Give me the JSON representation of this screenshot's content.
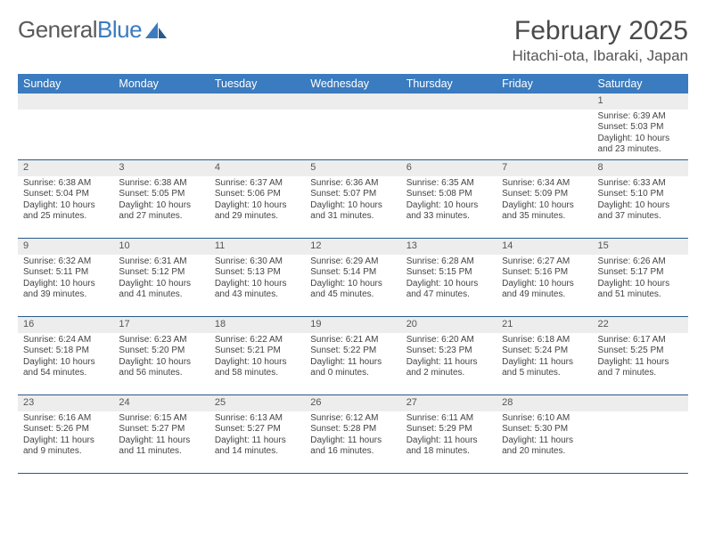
{
  "logo": {
    "text1": "General",
    "text2": "Blue"
  },
  "title": "February 2025",
  "location": "Hitachi-ota, Ibaraki, Japan",
  "colors": {
    "header_bg": "#3b7bbf",
    "header_fg": "#ffffff",
    "daynum_bg": "#ededed",
    "border": "#2a5a8a",
    "text": "#444444"
  },
  "weekdays": [
    "Sunday",
    "Monday",
    "Tuesday",
    "Wednesday",
    "Thursday",
    "Friday",
    "Saturday"
  ],
  "weeks": [
    [
      {
        "n": "",
        "empty": true
      },
      {
        "n": "",
        "empty": true
      },
      {
        "n": "",
        "empty": true
      },
      {
        "n": "",
        "empty": true
      },
      {
        "n": "",
        "empty": true
      },
      {
        "n": "",
        "empty": true
      },
      {
        "n": "1",
        "sr": "Sunrise: 6:39 AM",
        "ss": "Sunset: 5:03 PM",
        "dl1": "Daylight: 10 hours",
        "dl2": "and 23 minutes."
      }
    ],
    [
      {
        "n": "2",
        "sr": "Sunrise: 6:38 AM",
        "ss": "Sunset: 5:04 PM",
        "dl1": "Daylight: 10 hours",
        "dl2": "and 25 minutes."
      },
      {
        "n": "3",
        "sr": "Sunrise: 6:38 AM",
        "ss": "Sunset: 5:05 PM",
        "dl1": "Daylight: 10 hours",
        "dl2": "and 27 minutes."
      },
      {
        "n": "4",
        "sr": "Sunrise: 6:37 AM",
        "ss": "Sunset: 5:06 PM",
        "dl1": "Daylight: 10 hours",
        "dl2": "and 29 minutes."
      },
      {
        "n": "5",
        "sr": "Sunrise: 6:36 AM",
        "ss": "Sunset: 5:07 PM",
        "dl1": "Daylight: 10 hours",
        "dl2": "and 31 minutes."
      },
      {
        "n": "6",
        "sr": "Sunrise: 6:35 AM",
        "ss": "Sunset: 5:08 PM",
        "dl1": "Daylight: 10 hours",
        "dl2": "and 33 minutes."
      },
      {
        "n": "7",
        "sr": "Sunrise: 6:34 AM",
        "ss": "Sunset: 5:09 PM",
        "dl1": "Daylight: 10 hours",
        "dl2": "and 35 minutes."
      },
      {
        "n": "8",
        "sr": "Sunrise: 6:33 AM",
        "ss": "Sunset: 5:10 PM",
        "dl1": "Daylight: 10 hours",
        "dl2": "and 37 minutes."
      }
    ],
    [
      {
        "n": "9",
        "sr": "Sunrise: 6:32 AM",
        "ss": "Sunset: 5:11 PM",
        "dl1": "Daylight: 10 hours",
        "dl2": "and 39 minutes."
      },
      {
        "n": "10",
        "sr": "Sunrise: 6:31 AM",
        "ss": "Sunset: 5:12 PM",
        "dl1": "Daylight: 10 hours",
        "dl2": "and 41 minutes."
      },
      {
        "n": "11",
        "sr": "Sunrise: 6:30 AM",
        "ss": "Sunset: 5:13 PM",
        "dl1": "Daylight: 10 hours",
        "dl2": "and 43 minutes."
      },
      {
        "n": "12",
        "sr": "Sunrise: 6:29 AM",
        "ss": "Sunset: 5:14 PM",
        "dl1": "Daylight: 10 hours",
        "dl2": "and 45 minutes."
      },
      {
        "n": "13",
        "sr": "Sunrise: 6:28 AM",
        "ss": "Sunset: 5:15 PM",
        "dl1": "Daylight: 10 hours",
        "dl2": "and 47 minutes."
      },
      {
        "n": "14",
        "sr": "Sunrise: 6:27 AM",
        "ss": "Sunset: 5:16 PM",
        "dl1": "Daylight: 10 hours",
        "dl2": "and 49 minutes."
      },
      {
        "n": "15",
        "sr": "Sunrise: 6:26 AM",
        "ss": "Sunset: 5:17 PM",
        "dl1": "Daylight: 10 hours",
        "dl2": "and 51 minutes."
      }
    ],
    [
      {
        "n": "16",
        "sr": "Sunrise: 6:24 AM",
        "ss": "Sunset: 5:18 PM",
        "dl1": "Daylight: 10 hours",
        "dl2": "and 54 minutes."
      },
      {
        "n": "17",
        "sr": "Sunrise: 6:23 AM",
        "ss": "Sunset: 5:20 PM",
        "dl1": "Daylight: 10 hours",
        "dl2": "and 56 minutes."
      },
      {
        "n": "18",
        "sr": "Sunrise: 6:22 AM",
        "ss": "Sunset: 5:21 PM",
        "dl1": "Daylight: 10 hours",
        "dl2": "and 58 minutes."
      },
      {
        "n": "19",
        "sr": "Sunrise: 6:21 AM",
        "ss": "Sunset: 5:22 PM",
        "dl1": "Daylight: 11 hours",
        "dl2": "and 0 minutes."
      },
      {
        "n": "20",
        "sr": "Sunrise: 6:20 AM",
        "ss": "Sunset: 5:23 PM",
        "dl1": "Daylight: 11 hours",
        "dl2": "and 2 minutes."
      },
      {
        "n": "21",
        "sr": "Sunrise: 6:18 AM",
        "ss": "Sunset: 5:24 PM",
        "dl1": "Daylight: 11 hours",
        "dl2": "and 5 minutes."
      },
      {
        "n": "22",
        "sr": "Sunrise: 6:17 AM",
        "ss": "Sunset: 5:25 PM",
        "dl1": "Daylight: 11 hours",
        "dl2": "and 7 minutes."
      }
    ],
    [
      {
        "n": "23",
        "sr": "Sunrise: 6:16 AM",
        "ss": "Sunset: 5:26 PM",
        "dl1": "Daylight: 11 hours",
        "dl2": "and 9 minutes."
      },
      {
        "n": "24",
        "sr": "Sunrise: 6:15 AM",
        "ss": "Sunset: 5:27 PM",
        "dl1": "Daylight: 11 hours",
        "dl2": "and 11 minutes."
      },
      {
        "n": "25",
        "sr": "Sunrise: 6:13 AM",
        "ss": "Sunset: 5:27 PM",
        "dl1": "Daylight: 11 hours",
        "dl2": "and 14 minutes."
      },
      {
        "n": "26",
        "sr": "Sunrise: 6:12 AM",
        "ss": "Sunset: 5:28 PM",
        "dl1": "Daylight: 11 hours",
        "dl2": "and 16 minutes."
      },
      {
        "n": "27",
        "sr": "Sunrise: 6:11 AM",
        "ss": "Sunset: 5:29 PM",
        "dl1": "Daylight: 11 hours",
        "dl2": "and 18 minutes."
      },
      {
        "n": "28",
        "sr": "Sunrise: 6:10 AM",
        "ss": "Sunset: 5:30 PM",
        "dl1": "Daylight: 11 hours",
        "dl2": "and 20 minutes."
      },
      {
        "n": "",
        "empty": true
      }
    ]
  ]
}
